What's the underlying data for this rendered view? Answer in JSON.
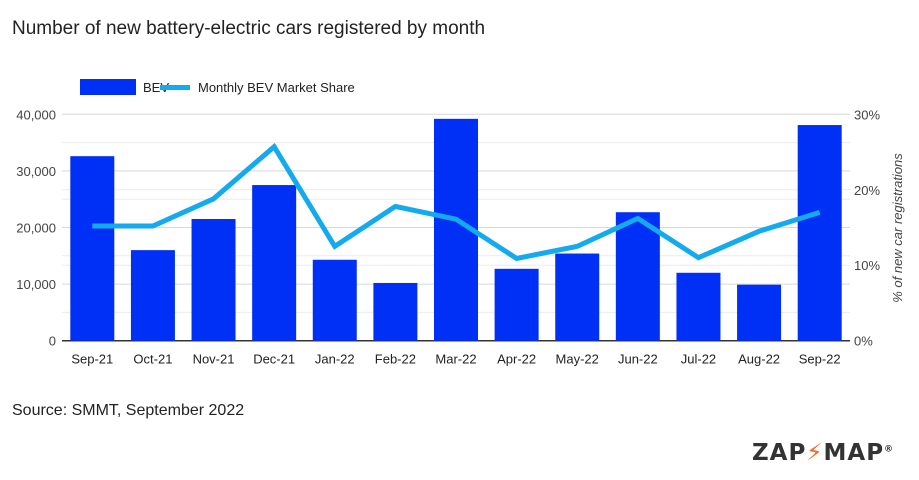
{
  "title": "Number of new battery-electric cars registered by month",
  "source": "Source: SMMT, September 2022",
  "logo": {
    "text": "ZAP MAP",
    "left": "ZAP",
    "right": "MAP",
    "registered": "®"
  },
  "colors": {
    "bar": "#0030f5",
    "line": "#14aaee",
    "grid": "#d8d8d8",
    "text": "#444444"
  },
  "chart_data": {
    "type": "bar",
    "title": "Number of new battery-electric cars registered by month",
    "categories": [
      "Sep-21",
      "Oct-21",
      "Nov-21",
      "Dec-21",
      "Jan-22",
      "Feb-22",
      "Mar-22",
      "Apr-22",
      "May-22",
      "Jun-22",
      "Jul-22",
      "Aug-22",
      "Sep-22"
    ],
    "series": [
      {
        "name": "BEV",
        "type": "bar",
        "axis": "left",
        "values": [
          32600,
          16000,
          21500,
          27500,
          14300,
          10200,
          39200,
          12700,
          15400,
          22700,
          12000,
          9900,
          38100
        ]
      },
      {
        "name": "Monthly BEV Market Share",
        "type": "line",
        "axis": "right",
        "values": [
          15.2,
          15.2,
          18.8,
          25.7,
          12.5,
          17.8,
          16.1,
          10.9,
          12.5,
          16.2,
          11.0,
          14.5,
          17.0
        ]
      }
    ],
    "ylim": [
      0,
      40000
    ],
    "yticks": [
      "0",
      "10,000",
      "20,000",
      "30,000",
      "40,000"
    ],
    "y2lim": [
      0,
      30
    ],
    "y2ticks": [
      "0%",
      "10%",
      "20%",
      "30%"
    ],
    "ylabel": "",
    "y2label": "% of new car registrations",
    "legend": "top-left",
    "grid": true
  }
}
